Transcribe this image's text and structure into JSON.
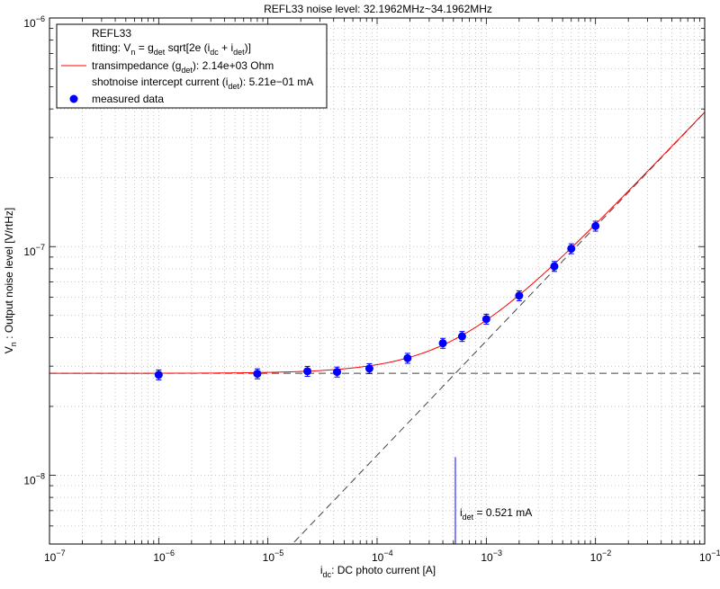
{
  "chart_data": {
    "type": "scatter",
    "title": "REFL33 noise level: 32.1962MHz~34.1962MHz",
    "xlabel": {
      "sym": "i",
      "sub": "dc",
      "rest": ": DC photo current [A]"
    },
    "ylabel": {
      "sym": "V",
      "sub": "n",
      "rest": " : Output noise level [V/rtHz]"
    },
    "xscale": "log",
    "yscale": "log",
    "xlim": [
      1e-07,
      0.1
    ],
    "ylim": [
      5e-09,
      1e-06
    ],
    "grid": true,
    "x_ticks": [
      {
        "value": 1e-07,
        "base": "10",
        "exp": "−7"
      },
      {
        "value": 1e-06,
        "base": "10",
        "exp": "−6"
      },
      {
        "value": 1e-05,
        "base": "10",
        "exp": "−5"
      },
      {
        "value": 0.0001,
        "base": "10",
        "exp": "−4"
      },
      {
        "value": 0.001,
        "base": "10",
        "exp": "−3"
      },
      {
        "value": 0.01,
        "base": "10",
        "exp": "−2"
      },
      {
        "value": 0.1,
        "base": "10",
        "exp": "−1"
      }
    ],
    "y_ticks": [
      {
        "value": 1e-08,
        "base": "10",
        "exp": "−8"
      },
      {
        "value": 1e-07,
        "base": "10",
        "exp": "−7"
      },
      {
        "value": 1e-06,
        "base": "10",
        "exp": "−6"
      }
    ],
    "legend": {
      "placement": "top-left",
      "name": "REFL33",
      "fitting": {
        "prefix": "fitting: ",
        "v": "V",
        "v_sub": "n",
        "eq": " = g",
        "g_sub": "det",
        "mid": " sqrt[2e (i",
        "i_sub": "dc",
        "plus": " + i",
        "i2_sub": "det",
        "end": ")]"
      },
      "transimpedance": {
        "pre": "transimpedance (g",
        "sub": "det",
        "post": "): 2.14e+03 Ohm"
      },
      "intercept": {
        "pre": "shotnoise intercept current (i",
        "sub": "det",
        "post": "): 5.21e−01 mA"
      },
      "measured": "measured data"
    },
    "params": {
      "g_det": 2140,
      "i_det": 0.000521,
      "floor": 2.79e-08
    },
    "series": [
      {
        "name": "measured data",
        "color": "#0000ff",
        "x": [
          1e-06,
          8e-06,
          2.3e-05,
          4.3e-05,
          8.5e-05,
          0.00019,
          0.0004,
          0.0006,
          0.001,
          0.002,
          0.0042,
          0.006,
          0.01
        ],
        "y": [
          2.75e-08,
          2.78e-08,
          2.85e-08,
          2.83e-08,
          2.93e-08,
          3.25e-08,
          3.78e-08,
          4.05e-08,
          4.82e-08,
          6.1e-08,
          8.2e-08,
          9.8e-08,
          1.23e-07
        ],
        "yerr_rel": 0.05
      },
      {
        "name": "fit",
        "color": "#ff0000"
      },
      {
        "name": "shot noise asymptote",
        "color": "#444444"
      },
      {
        "name": "noise floor asymptote",
        "color": "#444444"
      }
    ],
    "marker_line": {
      "x": 0.000521,
      "y_top": 1.2e-08,
      "color": "#0000ff"
    },
    "annotation": {
      "sym": "i",
      "sub": "det",
      "text": " = 0.521 mA"
    }
  }
}
